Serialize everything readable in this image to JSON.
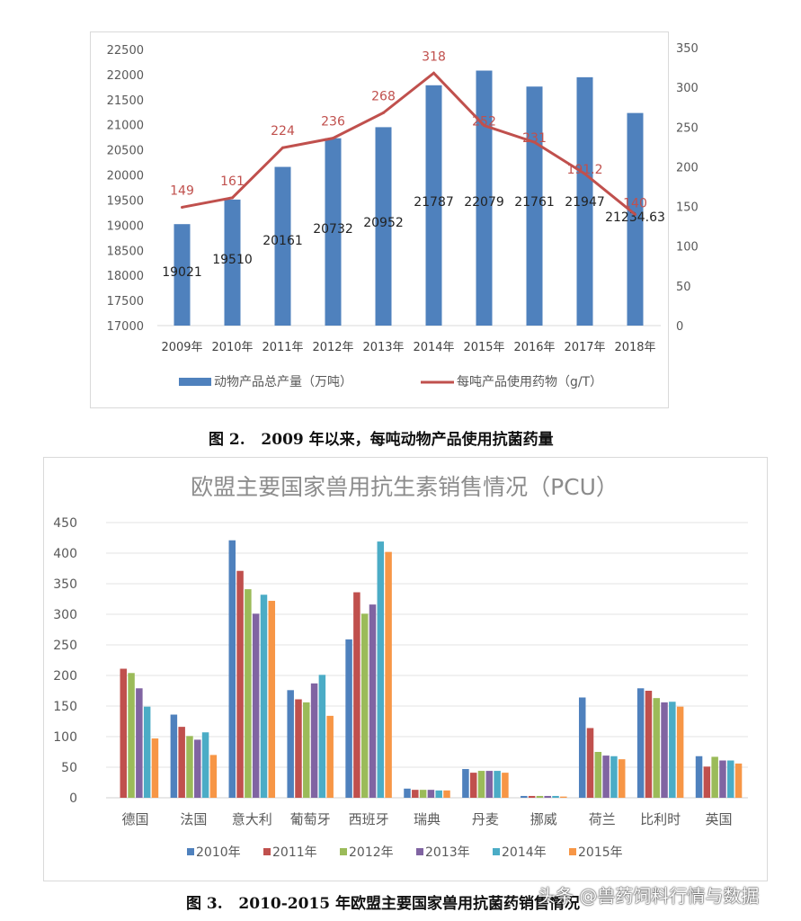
{
  "chart_data": [
    {
      "type": "bar+line",
      "categories": [
        "2009年",
        "2010年",
        "2011年",
        "2012年",
        "2013年",
        "2014年",
        "2015年",
        "2016年",
        "2017年",
        "2018年"
      ],
      "series": [
        {
          "name": "动物产品总产量（万吨）",
          "type": "bar",
          "axis": "left",
          "color": "#4f81bd",
          "values": [
            19021,
            19510,
            20161,
            20732,
            20952,
            21787,
            22079,
            21761,
            21947,
            21234.63
          ],
          "labels": [
            "19021",
            "19510",
            "20161",
            "20732",
            "20952",
            "21787",
            "22079",
            "21761",
            "21947",
            "21234.63"
          ]
        },
        {
          "name": "每吨产品使用药物（g/T）",
          "type": "line",
          "axis": "right",
          "color": "#c0504d",
          "values": [
            149,
            161,
            224,
            236,
            268,
            318,
            252,
            231,
            191.2,
            140
          ],
          "labels": [
            "149",
            "161",
            "224",
            "236",
            "268",
            "318",
            "252",
            "231",
            "191.2",
            "140"
          ]
        }
      ],
      "left_axis": {
        "range": [
          17000,
          22500
        ],
        "ticks": [
          "17000",
          "17500",
          "18000",
          "18500",
          "19000",
          "19500",
          "20000",
          "20500",
          "21000",
          "21500",
          "22000",
          "22500"
        ]
      },
      "right_axis": {
        "range": [
          0,
          350
        ],
        "ticks": [
          "0",
          "50",
          "100",
          "150",
          "200",
          "250",
          "300",
          "350"
        ]
      },
      "grid": false,
      "legend": "bottom",
      "caption": "图 2.   2009 年以来，每吨动物产品使用抗菌药量"
    },
    {
      "type": "bar",
      "title": "欧盟主要国家兽用抗生素销售情况（PCU）",
      "categories": [
        "德国",
        "法国",
        "意大利",
        "葡萄牙",
        "西班牙",
        "瑞典",
        "丹麦",
        "挪威",
        "荷兰",
        "比利时",
        "英国"
      ],
      "series": [
        {
          "name": "2010年",
          "color": "#4f81bd",
          "values": [
            null,
            136,
            421,
            176,
            259,
            15,
            47,
            3,
            164,
            179,
            68
          ]
        },
        {
          "name": "2011年",
          "color": "#c0504d",
          "values": [
            211,
            116,
            371,
            161,
            336,
            13,
            41,
            3,
            114,
            175,
            51
          ]
        },
        {
          "name": "2012年",
          "color": "#9bbb59",
          "values": [
            204,
            101,
            341,
            156,
            301,
            13,
            44,
            3,
            75,
            163,
            67
          ]
        },
        {
          "name": "2013年",
          "color": "#8064a2",
          "values": [
            179,
            95,
            301,
            187,
            316,
            13,
            44,
            3,
            69,
            156,
            61
          ]
        },
        {
          "name": "2014年",
          "color": "#4bacc6",
          "values": [
            149,
            107,
            332,
            201,
            419,
            12,
            44,
            3,
            68,
            157,
            61
          ]
        },
        {
          "name": "2015年",
          "color": "#f79646",
          "values": [
            97,
            70,
            322,
            134,
            402,
            12,
            41,
            2,
            63,
            149,
            56
          ]
        }
      ],
      "y_axis": {
        "range": [
          0,
          450
        ],
        "ticks": [
          "0",
          "50",
          "100",
          "150",
          "200",
          "250",
          "300",
          "350",
          "400",
          "450"
        ]
      },
      "grid": true,
      "legend": "bottom",
      "caption": "图 3.   2010-2015 年欧盟主要国家兽用抗菌药销售情况"
    }
  ],
  "watermark": "头条 @兽药饲料行情与数据"
}
